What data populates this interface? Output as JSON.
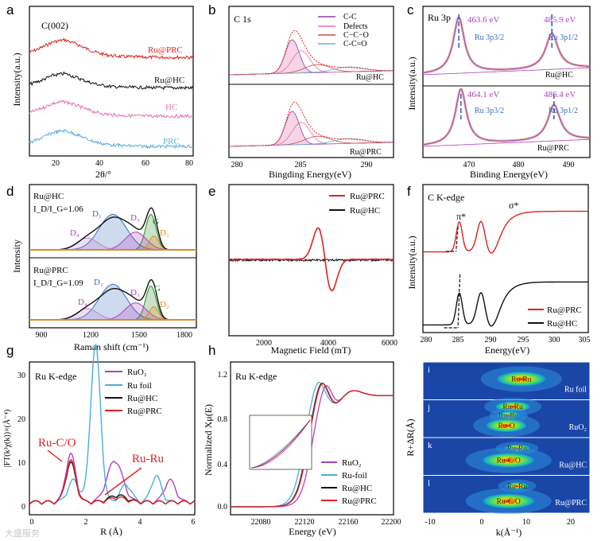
{
  "figure": {
    "watermark": "大盛服务"
  },
  "chart_data": [
    {
      "id": "a",
      "panel_label": "a",
      "type": "line",
      "title": "C(002)",
      "xlabel": "2θ/°",
      "ylabel": "Intensity(a.u.)",
      "xlim": [
        10,
        80
      ],
      "xticks": [
        "20",
        "40",
        "60",
        "80"
      ],
      "series": [
        {
          "name": "Ru@PRC",
          "color": "#e02020"
        },
        {
          "name": "Ru@HC",
          "color": "#111111"
        },
        {
          "name": "HC",
          "color": "#e86fb0"
        },
        {
          "name": "PRC",
          "color": "#5aaee0"
        }
      ],
      "x": [
        10,
        15,
        20,
        25,
        30,
        35,
        40,
        45,
        50,
        55,
        60,
        65,
        70,
        75,
        80
      ],
      "values": [
        [
          0.55,
          0.7,
          0.88,
          0.95,
          0.82,
          0.65,
          0.52,
          0.45,
          0.42,
          0.41,
          0.4,
          0.4,
          0.4,
          0.4,
          0.4
        ],
        [
          0.5,
          0.62,
          0.78,
          0.84,
          0.72,
          0.58,
          0.48,
          0.43,
          0.41,
          0.4,
          0.4,
          0.39,
          0.39,
          0.39,
          0.39
        ],
        [
          0.5,
          0.64,
          0.8,
          0.86,
          0.74,
          0.6,
          0.49,
          0.44,
          0.42,
          0.41,
          0.4,
          0.4,
          0.4,
          0.4,
          0.4
        ],
        [
          0.5,
          0.66,
          0.83,
          0.9,
          0.78,
          0.62,
          0.5,
          0.45,
          0.42,
          0.41,
          0.4,
          0.4,
          0.4,
          0.4,
          0.4
        ]
      ]
    },
    {
      "id": "b",
      "panel_label": "b",
      "type": "line",
      "title": "C 1s",
      "xlabel": "Bingding Energy(eV)",
      "xticks": [
        "280",
        "285",
        "290"
      ],
      "legend": [
        "C-C",
        "Defects",
        "C−C−O",
        "C-C=O"
      ],
      "legend_colors": [
        "#8a3fa8",
        "#e86fb0",
        "#c94a4a",
        "#6ab0d8"
      ],
      "subplots": [
        {
          "label": "Ru@HC",
          "peak_eV": 284.0
        },
        {
          "label": "Ru@PRC",
          "peak_eV": 284.0
        }
      ]
    },
    {
      "id": "c",
      "panel_label": "c",
      "type": "line",
      "title": "Ru 3p",
      "xlabel": "Binding Energy(eV)",
      "ylabel": "Intensity(a.u.)",
      "xticks": [
        "470",
        "480",
        "490"
      ],
      "subplots": [
        {
          "label": "Ru@HC",
          "peaks": [
            {
              "eV": "463.6 eV",
              "name": "Ru 3p3/2"
            },
            {
              "eV": "485.9 eV",
              "name": "Ru 3p1/2"
            }
          ]
        },
        {
          "label": "Ru@PRC",
          "peaks": [
            {
              "eV": "464.1 eV",
              "name": "Ru 3p3/2"
            },
            {
              "eV": "486.4 eV",
              "name": "Ru 3p1/2"
            }
          ]
        }
      ]
    },
    {
      "id": "d",
      "panel_label": "d",
      "type": "line",
      "xlabel": "Raman shift (cm⁻¹)",
      "ylabel": "Intensity",
      "xticks": [
        "900",
        "1200",
        "1500",
        "1800"
      ],
      "subplots": [
        {
          "label": "Ru@HC",
          "ratio": "I_D/I_G=1.06",
          "bands": [
            "D₁",
            "D₂",
            "D₃",
            "D₄",
            "G"
          ]
        },
        {
          "label": "Ru@PRC",
          "ratio": "I_D/I_G=1.09",
          "bands": [
            "D₁",
            "D₂",
            "D₃",
            "D₄",
            "G"
          ]
        }
      ]
    },
    {
      "id": "e",
      "panel_label": "e",
      "type": "line",
      "xlabel": "Magnetic Field (mT)",
      "xticks": [
        "2000",
        "4000",
        "6000"
      ],
      "series": [
        {
          "name": "Ru@PRC",
          "color": "#e02020"
        },
        {
          "name": "Ru@HC",
          "color": "#111111"
        }
      ]
    },
    {
      "id": "f",
      "panel_label": "f",
      "type": "line",
      "title": "C K-edge",
      "xlabel": "Energy(eV)",
      "ylabel": "Intensity(a.u.)",
      "xticks": [
        "280",
        "285",
        "290",
        "295",
        "300",
        "305"
      ],
      "annotations": [
        "π*",
        "σ*"
      ],
      "series": [
        {
          "name": "Ru@PRC",
          "color": "#e02020"
        },
        {
          "name": "Ru@HC",
          "color": "#111111"
        }
      ]
    },
    {
      "id": "g",
      "panel_label": "g",
      "type": "line",
      "title": "Ru K-edge",
      "xlabel": "R (Å)",
      "ylabel": "|FT(k³χ(k))×(Å⁻⁴)",
      "xticks": [
        "0",
        "2",
        "4",
        "6"
      ],
      "yticks": [
        "0",
        "10",
        "20",
        "30"
      ],
      "annotations": [
        "Ru-C/O",
        "Ru-Ru"
      ],
      "series": [
        {
          "name": "RuO₂",
          "color": "#b040c0"
        },
        {
          "name": "Ru foil",
          "color": "#4aaedc"
        },
        {
          "name": "Ru@HC",
          "color": "#111111"
        },
        {
          "name": "Ru@PRC",
          "color": "#e02020"
        }
      ]
    },
    {
      "id": "h",
      "panel_label": "h",
      "type": "line",
      "title": "Ru K-edge",
      "xlabel": "Energy (eV)",
      "ylabel": "Normalized Xμ(E)",
      "xticks": [
        "22080",
        "22120",
        "22160",
        "22200"
      ],
      "yticks": [
        "0.0",
        "0.4",
        "0.8",
        "1.2"
      ],
      "series": [
        {
          "name": "RuO₂",
          "color": "#b040c0"
        },
        {
          "name": "Ru-foil",
          "color": "#4aaedc"
        },
        {
          "name": "Ru@HC",
          "color": "#111111"
        },
        {
          "name": "Ru@PRC",
          "color": "#e02020"
        }
      ]
    },
    {
      "id": "i",
      "type": "heatmap",
      "xlabel": "k(Å⁻¹)",
      "ylabel": "R+ΔR(Å)",
      "xticks": [
        "-10",
        "0",
        "10",
        "20"
      ],
      "subplots": [
        {
          "label": "i",
          "name": "Ru foil",
          "spots": [
            "Ru-Ru"
          ]
        },
        {
          "label": "j",
          "name": "RuO₂",
          "spots": [
            "Ru-Ru",
            "Ru-Ru",
            "Ru-O"
          ]
        },
        {
          "label": "k",
          "name": "Ru@HC",
          "spots": [
            "Ru-Ru",
            "Ru-C/O"
          ]
        },
        {
          "label": "l",
          "name": "Ru@PRC",
          "spots": [
            "Ru-Ru",
            "Ru-C/O"
          ]
        }
      ]
    }
  ]
}
